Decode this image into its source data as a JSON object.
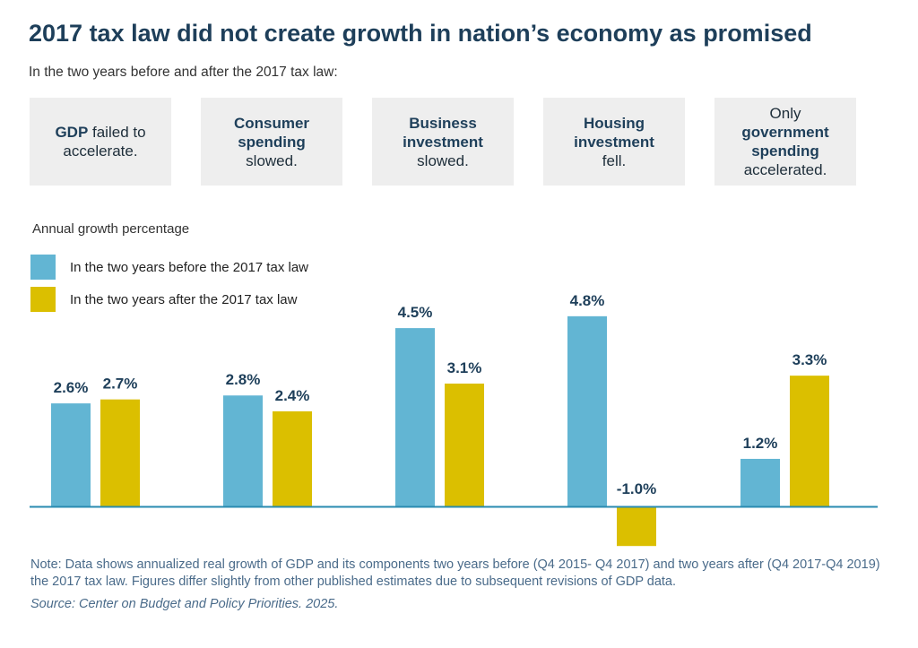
{
  "title": "2017 tax law did not create growth in nation’s economy as promised",
  "subtitle": "In the two years before and after the 2017 tax law:",
  "cards": [
    {
      "lines": [
        [
          {
            "t": "GDP",
            "b": true
          },
          {
            "t": " failed to",
            "b": false
          }
        ],
        [
          {
            "t": "accelerate.",
            "b": false
          }
        ]
      ]
    },
    {
      "lines": [
        [
          {
            "t": "Consumer",
            "b": true
          }
        ],
        [
          {
            "t": "spending",
            "b": true
          }
        ],
        [
          {
            "t": "slowed.",
            "b": false
          }
        ]
      ]
    },
    {
      "lines": [
        [
          {
            "t": "Business",
            "b": true
          }
        ],
        [
          {
            "t": "investment",
            "b": true
          }
        ],
        [
          {
            "t": "slowed.",
            "b": false
          }
        ]
      ]
    },
    {
      "lines": [
        [
          {
            "t": "Housing",
            "b": true
          }
        ],
        [
          {
            "t": "investment",
            "b": true
          }
        ],
        [
          {
            "t": "fell.",
            "b": false
          }
        ]
      ]
    },
    {
      "lines": [
        [
          {
            "t": "Only",
            "b": false
          }
        ],
        [
          {
            "t": "government",
            "b": true
          }
        ],
        [
          {
            "t": "spending",
            "b": true
          }
        ],
        [
          {
            "t": "accelerated.",
            "b": false
          }
        ]
      ]
    }
  ],
  "colors": {
    "before": "#62b5d3",
    "after": "#dbbf00",
    "baseline": "#2a8bb0",
    "label": "#1e3f5a"
  },
  "chart_data": {
    "type": "bar",
    "ylabel": "Annual growth percentage",
    "categories": [
      "GDP",
      "Consumer spending",
      "Business investment",
      "Housing investment",
      "Government spending"
    ],
    "series": [
      {
        "name": "In the two years before the 2017 tax law",
        "values": [
          2.6,
          2.8,
          4.5,
          4.8,
          1.2
        ],
        "labels": [
          "2.6%",
          "2.8%",
          "4.5%",
          "4.8%",
          "1.2%"
        ]
      },
      {
        "name": "In the two years after the 2017 tax law",
        "values": [
          2.7,
          2.4,
          3.1,
          -1.0,
          3.3
        ],
        "labels": [
          "2.7%",
          "2.4%",
          "3.1%",
          "-1.0%",
          "3.3%"
        ]
      }
    ],
    "ylim": [
      -1.0,
      4.8
    ],
    "grid": false,
    "legend_position": "top-left"
  },
  "note": "Note: Data shows annualized real growth of GDP and its components two years before (Q4 2015- Q4 2017) and two years after (Q4 2017-Q4 2019) the 2017 tax law. Figures differ slightly from other published estimates due to subsequent revisions of GDP data.",
  "source": "Source: Center on Budget and Policy Priorities. 2025."
}
